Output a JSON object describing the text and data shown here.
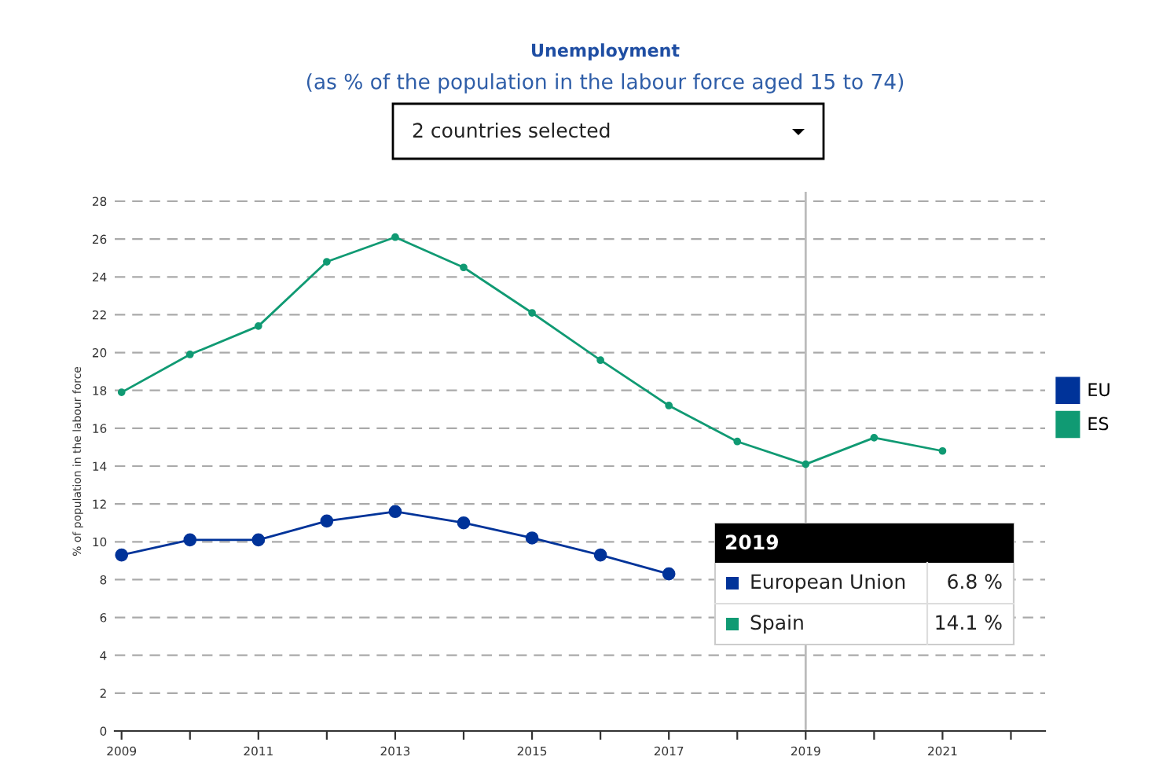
{
  "chart_data": {
    "type": "line",
    "title": "Unemployment",
    "subtitle": "(as % of the population in the labour force aged 15 to 74)",
    "ylabel": "% of population in the labour force",
    "x": [
      2009,
      2010,
      2011,
      2012,
      2013,
      2014,
      2015,
      2016,
      2017,
      2018,
      2019,
      2020,
      2021
    ],
    "series": [
      {
        "name": "EU",
        "color": "#003399",
        "values": [
          9.3,
          10.1,
          10.1,
          11.1,
          11.6,
          11.0,
          10.2,
          9.3,
          8.3,
          null,
          null,
          null,
          null
        ]
      },
      {
        "name": "ES",
        "color": "#109a73",
        "values": [
          17.9,
          19.9,
          21.4,
          24.8,
          26.1,
          24.5,
          22.1,
          19.6,
          17.2,
          15.3,
          14.1,
          15.5,
          14.8
        ]
      }
    ],
    "xlim": [
      2008.9,
      2022.5
    ],
    "ylim": [
      0,
      28.5
    ],
    "xticks": [
      2009,
      {
        "value": 2010,
        "label": null
      },
      2011,
      {
        "value": 2012,
        "label": null
      },
      2013,
      {
        "value": 2014,
        "label": null
      },
      2015,
      {
        "value": 2016,
        "label": null
      },
      2017,
      {
        "value": 2018,
        "label": null
      },
      2019,
      {
        "value": 2020,
        "label": null
      },
      2021,
      {
        "value": 2022,
        "label": null
      }
    ],
    "yticks": [
      0,
      2,
      4,
      6,
      8,
      10,
      12,
      14,
      16,
      18,
      20,
      22,
      24,
      26,
      28
    ],
    "ref_lines": [
      {
        "axis": "x",
        "value": 2019,
        "color": "#bbbbbb"
      }
    ],
    "grid": "y",
    "legend": "right",
    "marker": "circle",
    "line_style": "solid",
    "annotations": [
      "2 countries selected",
      "2019",
      "European Union",
      "6.8 %",
      "Spain",
      "14.1 %"
    ]
  }
}
